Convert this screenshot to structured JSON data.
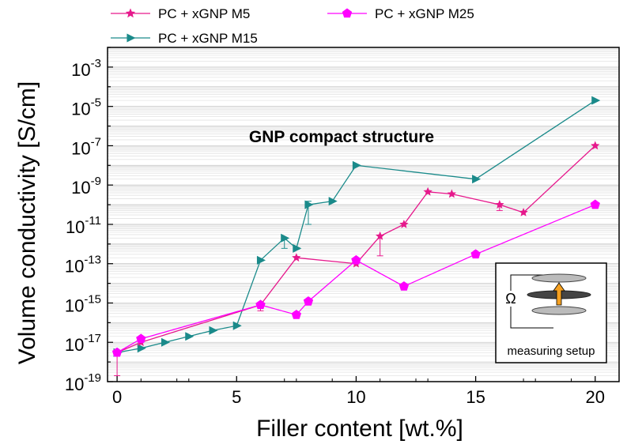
{
  "chart_data": {
    "type": "scatter",
    "xlabel": "Filler content [wt.%]",
    "ylabel": "Volume conductivity [S/cm]",
    "xlim": [
      -0.4,
      21
    ],
    "ylim": [
      1e-19,
      0.01
    ],
    "y_scale": "log",
    "x_ticks": [
      0,
      5,
      10,
      15,
      20
    ],
    "y_ticks": [
      {
        "exp": -19,
        "label": "10",
        "sup": "-19"
      },
      {
        "exp": -17,
        "label": "10",
        "sup": "-17"
      },
      {
        "exp": -15,
        "label": "10",
        "sup": "-15"
      },
      {
        "exp": -13,
        "label": "10",
        "sup": "-13"
      },
      {
        "exp": -11,
        "label": "10",
        "sup": "-11"
      },
      {
        "exp": -9,
        "label": "10",
        "sup": "-9"
      },
      {
        "exp": -7,
        "label": "10",
        "sup": "-7"
      },
      {
        "exp": -5,
        "label": "10",
        "sup": "-5"
      },
      {
        "exp": -3,
        "label": "10",
        "sup": "-3"
      }
    ],
    "grid": true,
    "legend_position": "top",
    "annotation": "GNP compact structure",
    "inset_label": "measuring setup",
    "inset_symbol": "Ω",
    "series": [
      {
        "name": "PC + xGNP M5",
        "color": "#e6198c",
        "marker": "star",
        "x": [
          0,
          1,
          6,
          7.5,
          10,
          11,
          12,
          13,
          14,
          16,
          17,
          20
        ],
        "y": [
          3e-18,
          1e-17,
          8e-16,
          2e-13,
          1e-13,
          2.5e-12,
          1e-11,
          4.5e-10,
          3.5e-10,
          1e-10,
          4e-11,
          1e-07
        ],
        "err_low": [
          2e-19,
          null,
          4e-16,
          null,
          null,
          2.5e-13,
          null,
          null,
          null,
          5e-11,
          null,
          null
        ],
        "err_high": [
          null,
          null,
          null,
          null,
          null,
          null,
          null,
          null,
          null,
          null,
          null,
          null
        ]
      },
      {
        "name": "PC + xGNP M15",
        "color": "#1a8a8a",
        "marker": "triangle-right",
        "x": [
          0,
          1,
          2,
          3,
          4,
          5,
          6,
          7,
          7.5,
          8,
          9,
          10,
          15,
          20
        ],
        "y": [
          3e-18,
          5e-18,
          1e-17,
          2e-17,
          4e-17,
          7e-17,
          1.5e-13,
          2e-12,
          6e-13,
          1e-10,
          1.5e-10,
          1e-08,
          2e-09,
          2e-05
        ],
        "err_low": [
          null,
          null,
          null,
          null,
          null,
          null,
          null,
          6e-13,
          null,
          1e-11,
          null,
          null,
          null,
          null
        ],
        "err_high": [
          null,
          null,
          null,
          null,
          null,
          null,
          null,
          null,
          null,
          1.5e-10,
          null,
          null,
          null,
          null
        ]
      },
      {
        "name": "PC + xGNP M25",
        "color": "#ff00ff",
        "marker": "pentagon",
        "x": [
          0,
          1,
          6,
          7.5,
          8,
          10,
          12,
          15,
          20
        ],
        "y": [
          3e-18,
          1.5e-17,
          8e-16,
          2.5e-16,
          1.2e-15,
          1.5e-13,
          7e-15,
          3e-13,
          1e-10
        ],
        "err_low": [
          null,
          null,
          null,
          null,
          null,
          null,
          null,
          null,
          null
        ],
        "err_high": [
          null,
          null,
          null,
          null,
          null,
          null,
          null,
          null,
          null
        ]
      }
    ]
  }
}
